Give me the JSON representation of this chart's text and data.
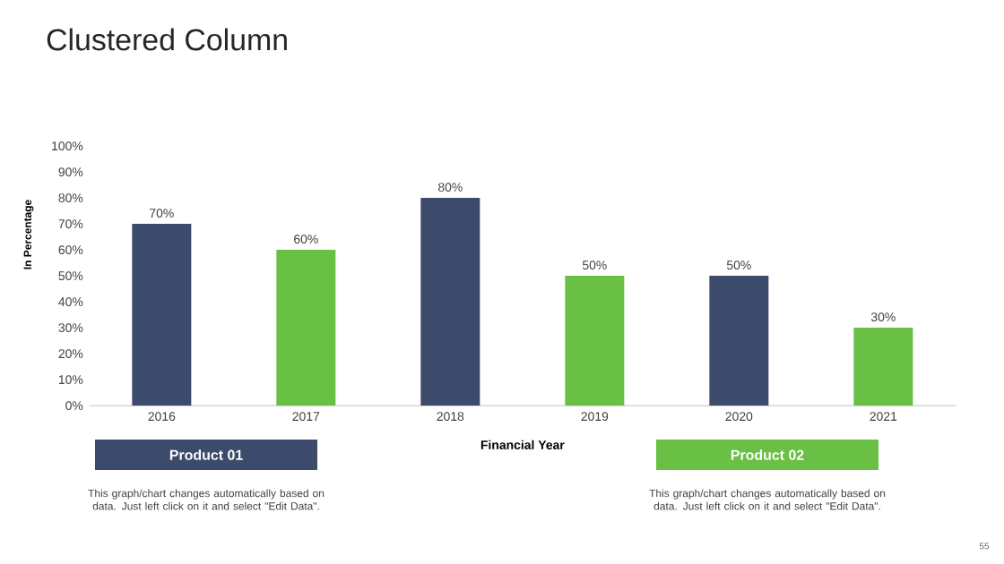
{
  "chart_data": {
    "type": "bar",
    "title": "Clustered Column",
    "xlabel": "Financial Year",
    "ylabel": "In Percentage",
    "categories": [
      "2016",
      "2017",
      "2018",
      "2019",
      "2020",
      "2021"
    ],
    "series": [
      {
        "name": "Product 01",
        "color": "#3c4b6c",
        "values": [
          70,
          null,
          80,
          null,
          50,
          null
        ],
        "value_labels": [
          "70%",
          null,
          "80%",
          null,
          "50%",
          null
        ]
      },
      {
        "name": "Product 02",
        "color": "#6abf45",
        "values": [
          null,
          60,
          null,
          50,
          null,
          30
        ],
        "value_labels": [
          null,
          "60%",
          null,
          "50%",
          null,
          "30%"
        ]
      }
    ],
    "ylim": [
      0,
      100
    ],
    "yticks": [
      {
        "value": 0,
        "label": "0%"
      },
      {
        "value": 10,
        "label": "10%"
      },
      {
        "value": 20,
        "label": "20%"
      },
      {
        "value": 30,
        "label": "30%"
      },
      {
        "value": 40,
        "label": "40%"
      },
      {
        "value": 50,
        "label": "50%"
      },
      {
        "value": 60,
        "label": "60%"
      },
      {
        "value": 70,
        "label": "70%"
      },
      {
        "value": 80,
        "label": "80%"
      },
      {
        "value": 90,
        "label": "90%"
      },
      {
        "value": 100,
        "label": "100%"
      }
    ],
    "legend": "bottom",
    "annotations": [
      "This graph/chart changes automatically based on data. Just left click on it and select \"Edit Data\".",
      "This graph/chart changes automatically based on data. Just left click on it and select \"Edit Data\".",
      "55"
    ]
  }
}
